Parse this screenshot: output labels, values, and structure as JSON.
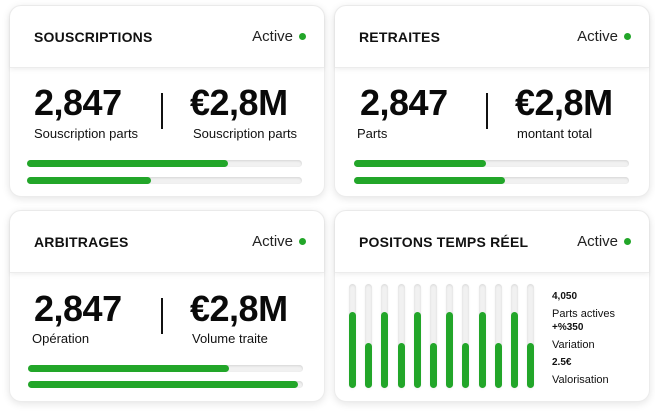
{
  "theme": {
    "accent": "#22a629",
    "track": "#f1f1f1"
  },
  "status_label": "Active",
  "souscriptions": {
    "title": "SOUSCRIPTIONS",
    "left_value": "2,847",
    "left_label": "Souscription parts",
    "right_value": "€2,8M",
    "right_label": "Souscription parts",
    "progress": [
      0.73,
      0.45
    ]
  },
  "retraites": {
    "title": "RETRAITES",
    "left_value": "2,847",
    "left_label": "Parts",
    "right_value": "€2,8M",
    "right_label": "montant total",
    "progress": [
      0.48,
      0.55
    ]
  },
  "arbitrages": {
    "title": "ARBITRAGES",
    "left_value": "2,847",
    "left_label": "Opération",
    "right_value": "€2,8M",
    "right_label": "Volume traite",
    "progress": [
      0.73,
      0.98
    ]
  },
  "positions": {
    "title": "POSITONS TEMPS RÉEL",
    "bars": [
      0.73,
      0.43,
      0.73,
      0.43,
      0.73,
      0.43,
      0.73,
      0.43,
      0.73,
      0.43,
      0.73,
      0.43
    ],
    "legend": [
      {
        "value": "4,050",
        "label": "Parts actives"
      },
      {
        "value": "+%350",
        "label": "Variation"
      },
      {
        "value": "2.5€",
        "label": "Valorisation"
      }
    ]
  }
}
